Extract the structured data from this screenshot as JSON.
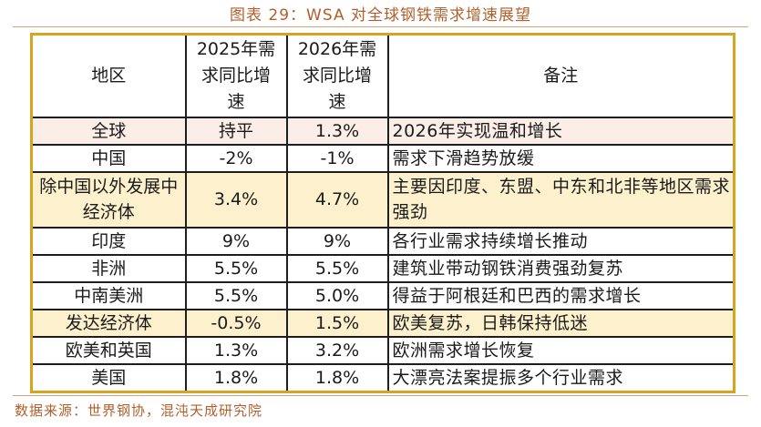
{
  "caption": "图表 29：WSA 对全球钢铁需求增速展望",
  "table": {
    "headers": {
      "region": "地区",
      "y2025": "2025年需求同比增速",
      "y2026": "2026年需求同比增速",
      "note": "备注"
    },
    "rows": [
      {
        "region": "全球",
        "y2025": "持平",
        "y2026": "1.3%",
        "note": "2026年实现温和增长"
      },
      {
        "region": "中国",
        "y2025": "-2%",
        "y2026": "-1%",
        "note": "需求下滑趋势放缓"
      },
      {
        "region": "除中国以外发展中经济体",
        "y2025": "3.4%",
        "y2026": "4.7%",
        "note": "主要因印度、东盟、中东和北非等地区需求强劲"
      },
      {
        "region": "印度",
        "y2025": "9%",
        "y2026": "9%",
        "note": "各行业需求持续增长推动"
      },
      {
        "region": "非洲",
        "y2025": "5.5%",
        "y2026": "5.5%",
        "note": "建筑业带动钢铁消费强劲复苏"
      },
      {
        "region": "中南美洲",
        "y2025": "5.5%",
        "y2026": "5.0%",
        "note": "得益于阿根廷和巴西的需求增长"
      },
      {
        "region": "发达经济体",
        "y2025": "-0.5%",
        "y2026": "1.5%",
        "note": "欧美复苏，日韩保持低迷"
      },
      {
        "region": "欧美和英国",
        "y2025": "1.3%",
        "y2026": "3.2%",
        "note": "欧洲需求增长恢复"
      },
      {
        "region": "美国",
        "y2025": "1.8%",
        "y2026": "1.8%",
        "note": "大漂亮法案提振多个行业需求"
      }
    ]
  },
  "source": "数据来源：世界钢协，混沌天成研究院"
}
